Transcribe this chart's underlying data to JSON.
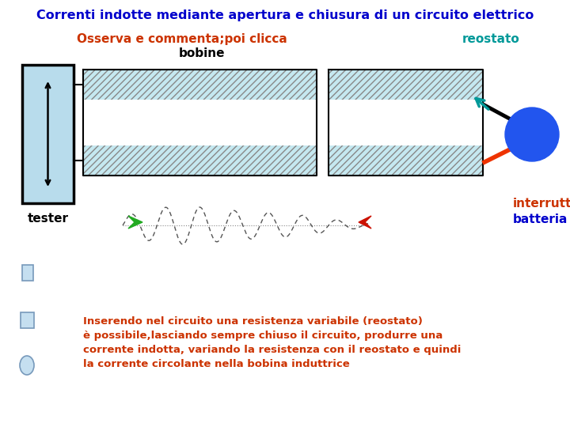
{
  "title": "Correnti indotte mediante apertura e chiusura di un circuito elettrico",
  "title_color": "#0000cc",
  "title_fontsize": 11.5,
  "subtitle": "Osserva e commenta;poi clicca",
  "subtitle_color": "#cc3300",
  "subtitle_fontsize": 11,
  "label_bobine": "bobine",
  "label_bobine_color": "#000000",
  "label_bobine_fontsize": 11,
  "label_reostato": "reostato",
  "label_reostato_color": "#009999",
  "label_reostato_fontsize": 11,
  "label_tester": "tester",
  "label_tester_color": "#000000",
  "label_tester_fontsize": 11,
  "label_interruttore": "interruttore",
  "label_interruttore_color": "#cc3300",
  "label_interruttore_fontsize": 11,
  "label_batteria": "batteria",
  "label_batteria_color": "#0000cc",
  "label_batteria_fontsize": 11,
  "body_text_line1": "Inserendo nel circuito una resistenza variabile (reostato)",
  "body_text_line2": "è possibile,lasciando sempre chiuso il circuito, produrre una",
  "body_text_line3": "corrente indotta, variando la resistenza con il reostato e quindi",
  "body_text_line4": "la corrente circolante nella bobina induttrice",
  "body_text_color": "#cc3300",
  "body_text_fontsize": 9.5,
  "bg_color": "#ffffff",
  "hatch_color": "#c5e8f0",
  "tester_fill": "#b8dcec",
  "ball_color": "#2255ee"
}
